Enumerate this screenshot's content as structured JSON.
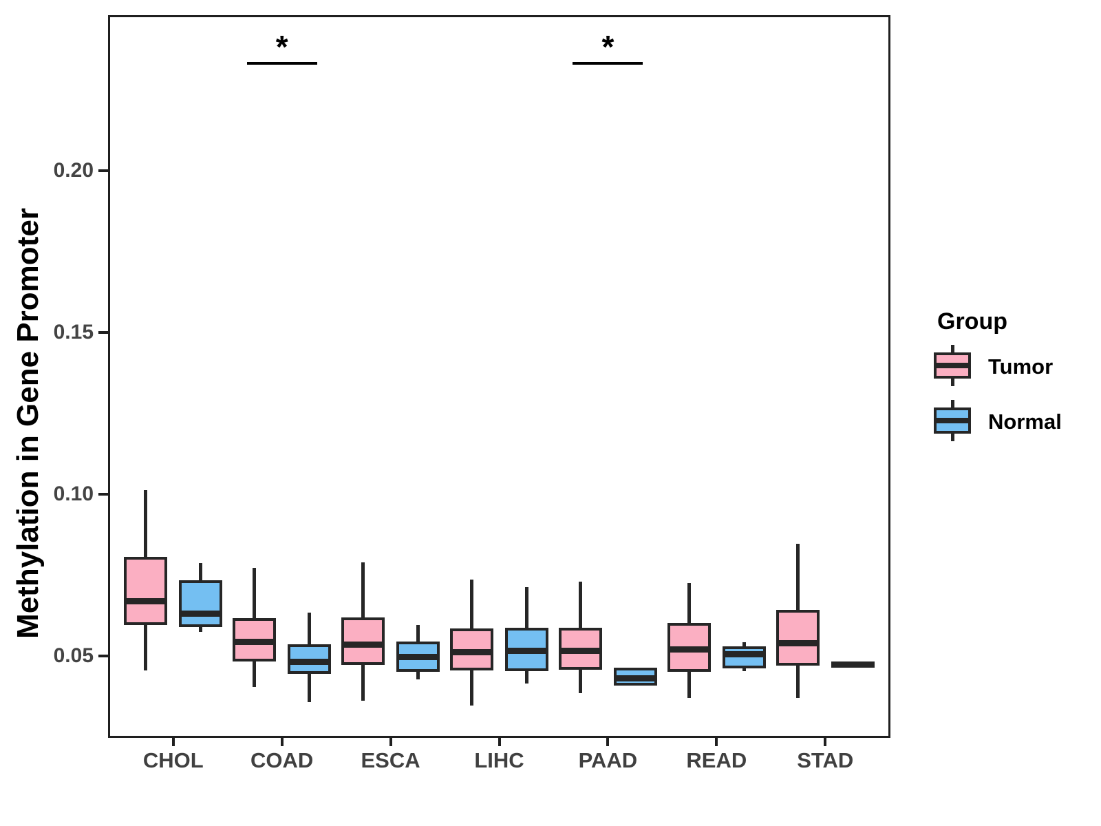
{
  "chart_data": {
    "type": "boxplot",
    "title": "",
    "xlabel": "",
    "ylabel": "Methylation in Gene Promoter",
    "categories": [
      "CHOL",
      "COAD",
      "ESCA",
      "LIHC",
      "PAAD",
      "READ",
      "STAD"
    ],
    "groups": [
      {
        "name": "Tumor",
        "color": "#FBAFC2"
      },
      {
        "name": "Normal",
        "color": "#74BFF2"
      }
    ],
    "legend": {
      "title": "Group",
      "position": "right"
    },
    "y_axis": {
      "tick_labels": [
        "0.05",
        "0.10",
        "0.15",
        "0.20"
      ],
      "tick_values": [
        0.05,
        0.1,
        0.15,
        0.2
      ],
      "ylim": [
        0.0247,
        0.248
      ]
    },
    "grid": false,
    "boxes": [
      {
        "category": "CHOL",
        "group": "Tumor",
        "min": 0.0455,
        "q1": 0.0604,
        "median": 0.067,
        "q3": 0.0798,
        "max": 0.1013
      },
      {
        "category": "CHOL",
        "group": "Normal",
        "min": 0.0575,
        "q1": 0.0597,
        "median": 0.063,
        "q3": 0.0726,
        "max": 0.0787
      },
      {
        "category": "COAD",
        "group": "Tumor",
        "min": 0.0405,
        "q1": 0.0492,
        "median": 0.0543,
        "q3": 0.0609,
        "max": 0.0772
      },
      {
        "category": "COAD",
        "group": "Normal",
        "min": 0.0357,
        "q1": 0.0453,
        "median": 0.0481,
        "q3": 0.0528,
        "max": 0.0634
      },
      {
        "category": "ESCA",
        "group": "Tumor",
        "min": 0.0361,
        "q1": 0.0481,
        "median": 0.0536,
        "q3": 0.0611,
        "max": 0.079
      },
      {
        "category": "ESCA",
        "group": "Normal",
        "min": 0.0427,
        "q1": 0.0459,
        "median": 0.0497,
        "q3": 0.0536,
        "max": 0.0595
      },
      {
        "category": "LIHC",
        "group": "Tumor",
        "min": 0.0347,
        "q1": 0.0464,
        "median": 0.0511,
        "q3": 0.0577,
        "max": 0.0737
      },
      {
        "category": "LIHC",
        "group": "Normal",
        "min": 0.0416,
        "q1": 0.0462,
        "median": 0.0515,
        "q3": 0.0579,
        "max": 0.0712
      },
      {
        "category": "PAAD",
        "group": "Tumor",
        "min": 0.0386,
        "q1": 0.0465,
        "median": 0.0515,
        "q3": 0.0579,
        "max": 0.073
      },
      {
        "category": "PAAD",
        "group": "Normal",
        "min": 0.0413,
        "q1": 0.0417,
        "median": 0.0432,
        "q3": 0.0455,
        "max": 0.0463
      },
      {
        "category": "READ",
        "group": "Tumor",
        "min": 0.037,
        "q1": 0.046,
        "median": 0.0521,
        "q3": 0.0594,
        "max": 0.0726
      },
      {
        "category": "READ",
        "group": "Normal",
        "min": 0.0453,
        "q1": 0.0471,
        "median": 0.0505,
        "q3": 0.0521,
        "max": 0.0543
      },
      {
        "category": "STAD",
        "group": "Tumor",
        "min": 0.037,
        "q1": 0.0479,
        "median": 0.054,
        "q3": 0.0634,
        "max": 0.0847
      },
      {
        "category": "STAD",
        "group": "Normal",
        "min": 0.0474,
        "q1": 0.0474,
        "median": 0.0474,
        "q3": 0.0474,
        "max": 0.0474
      }
    ],
    "significance": [
      {
        "category": "COAD",
        "label": "*"
      },
      {
        "category": "PAAD",
        "label": "*"
      }
    ]
  }
}
